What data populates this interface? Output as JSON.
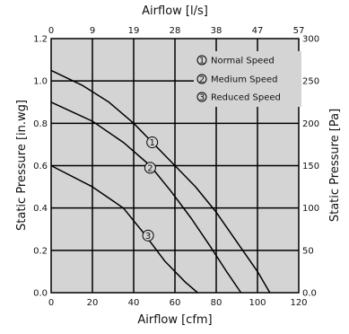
{
  "chart_data": {
    "type": "line",
    "x_bottom": {
      "label": "Airflow [cfm]",
      "range": [
        0,
        120
      ],
      "ticks": [
        "0",
        "20",
        "40",
        "60",
        "80",
        "100",
        "120"
      ]
    },
    "x_top": {
      "label": "Airflow [l/s]",
      "ticks": [
        "0",
        "9",
        "19",
        "28",
        "38",
        "47",
        "57"
      ]
    },
    "y_left": {
      "label": "Static Pressure [in.wg]",
      "range": [
        0,
        1.2
      ],
      "ticks": [
        "0.0",
        "0.2",
        "0.4",
        "0.6",
        "0.8",
        "1.0",
        "1.2"
      ]
    },
    "y_right": {
      "label": "Static Pressure [Pa]",
      "ticks": [
        "0.0",
        "50",
        "100",
        "150",
        "200",
        "250",
        "300"
      ]
    },
    "grid": true,
    "legend_position": "top-right",
    "legend": [
      {
        "marker": "1",
        "label": "Normal Speed"
      },
      {
        "marker": "2",
        "label": "Medium Speed"
      },
      {
        "marker": "3",
        "label": "Reduced Speed"
      }
    ],
    "series": [
      {
        "marker": "1",
        "x": [
          0,
          15,
          28,
          40,
          50,
          60,
          70,
          80,
          90,
          100,
          106
        ],
        "y": [
          1.05,
          0.98,
          0.9,
          0.8,
          0.7,
          0.6,
          0.5,
          0.38,
          0.24,
          0.1,
          0.0
        ],
        "annotation_at": [
          49,
          0.71
        ]
      },
      {
        "marker": "2",
        "x": [
          0,
          20,
          35,
          48,
          58,
          68,
          77,
          85,
          92
        ],
        "y": [
          0.9,
          0.81,
          0.71,
          0.6,
          0.48,
          0.35,
          0.22,
          0.1,
          0.0
        ],
        "annotation_at": [
          48,
          0.59
        ]
      },
      {
        "marker": "3",
        "x": [
          0,
          20,
          35,
          45,
          55,
          65,
          71
        ],
        "y": [
          0.6,
          0.5,
          0.4,
          0.28,
          0.15,
          0.05,
          0.0
        ],
        "annotation_at": [
          47,
          0.27
        ]
      }
    ]
  }
}
